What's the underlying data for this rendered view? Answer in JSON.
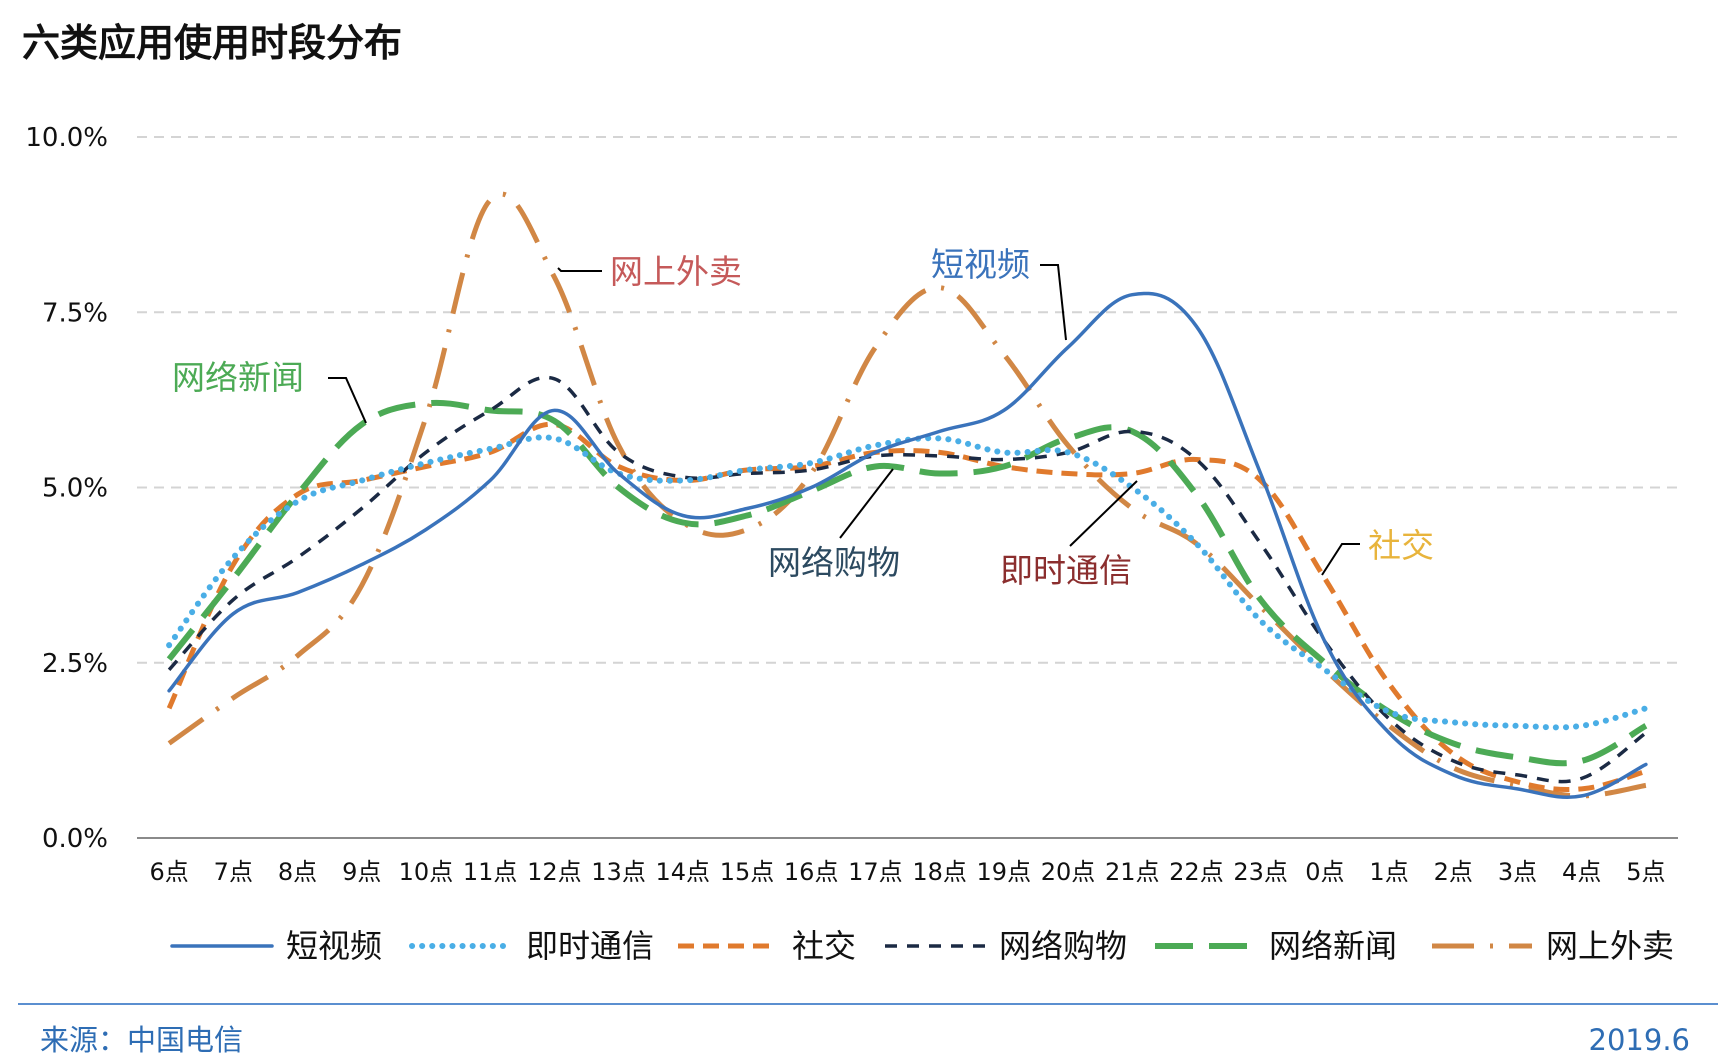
{
  "chart_data": {
    "type": "line",
    "title": "六类应用使用时段分布",
    "xlabel": "",
    "ylabel": "",
    "categories": [
      "6点",
      "7点",
      "8点",
      "9点",
      "10点",
      "11点",
      "12点",
      "13点",
      "14点",
      "15点",
      "16点",
      "17点",
      "18点",
      "19点",
      "20点",
      "21点",
      "22点",
      "23点",
      "0点",
      "1点",
      "2点",
      "3点",
      "4点",
      "5点"
    ],
    "y_ticks": [
      "0.0%",
      "2.5%",
      "5.0%",
      "7.5%",
      "10.0%"
    ],
    "ylim": [
      0,
      10
    ],
    "grid": true,
    "legend_position": "bottom",
    "series": [
      {
        "name": "短视频",
        "color": "#3a73bb",
        "style": "solid",
        "values": [
          2.1,
          3.2,
          3.5,
          3.9,
          4.4,
          5.1,
          6.1,
          5.2,
          4.6,
          4.7,
          5.0,
          5.5,
          5.8,
          6.1,
          7.0,
          7.75,
          7.3,
          5.2,
          2.8,
          1.5,
          0.9,
          0.7,
          0.6,
          1.05
        ]
      },
      {
        "name": "即时通信",
        "color": "#4aaee6",
        "style": "dotted",
        "values": [
          2.75,
          4.0,
          4.8,
          5.1,
          5.35,
          5.55,
          5.7,
          5.2,
          5.1,
          5.25,
          5.35,
          5.6,
          5.7,
          5.5,
          5.5,
          5.0,
          4.2,
          3.1,
          2.4,
          1.8,
          1.65,
          1.6,
          1.6,
          1.85
        ]
      },
      {
        "name": "社交",
        "color": "#e07a2d",
        "style": "dashed",
        "values": [
          1.85,
          3.9,
          4.9,
          5.1,
          5.3,
          5.5,
          5.9,
          5.3,
          5.1,
          5.25,
          5.3,
          5.5,
          5.5,
          5.3,
          5.2,
          5.2,
          5.4,
          5.1,
          3.7,
          2.2,
          1.2,
          0.8,
          0.7,
          0.95
        ]
      },
      {
        "name": "网络购物",
        "color": "#1b2a44",
        "style": "dashed-fine",
        "values": [
          2.4,
          3.4,
          4.0,
          4.7,
          5.5,
          6.1,
          6.55,
          5.5,
          5.15,
          5.2,
          5.25,
          5.45,
          5.45,
          5.4,
          5.5,
          5.8,
          5.4,
          4.2,
          2.8,
          1.7,
          1.1,
          0.9,
          0.85,
          1.5
        ]
      },
      {
        "name": "网络新闻",
        "color": "#4caa55",
        "style": "long-dash",
        "values": [
          2.55,
          3.7,
          4.9,
          5.9,
          6.2,
          6.1,
          5.95,
          5.0,
          4.5,
          4.6,
          4.95,
          5.3,
          5.2,
          5.3,
          5.7,
          5.8,
          4.9,
          3.4,
          2.5,
          1.8,
          1.35,
          1.15,
          1.1,
          1.6
        ]
      },
      {
        "name": "网上外卖",
        "color": "#d18745",
        "style": "dash-dot",
        "values": [
          1.35,
          2.0,
          2.6,
          3.6,
          6.0,
          9.1,
          8.0,
          5.6,
          4.5,
          4.4,
          5.2,
          7.0,
          7.85,
          6.9,
          5.6,
          4.7,
          4.2,
          3.3,
          2.4,
          1.6,
          1.0,
          0.75,
          0.6,
          0.75
        ]
      }
    ],
    "annotations": [
      {
        "text": "网上外卖",
        "color": "#c55a5a"
      },
      {
        "text": "短视频",
        "color": "#3a73bb"
      },
      {
        "text": "网络新闻",
        "color": "#4caa55"
      },
      {
        "text": "网络购物",
        "color": "#2c4a60"
      },
      {
        "text": "即时通信",
        "color": "#8b2e2e"
      },
      {
        "text": "社交",
        "color": "#e8b43c"
      }
    ]
  },
  "footer": {
    "source": "来源：中国电信",
    "date": "2019.6"
  }
}
